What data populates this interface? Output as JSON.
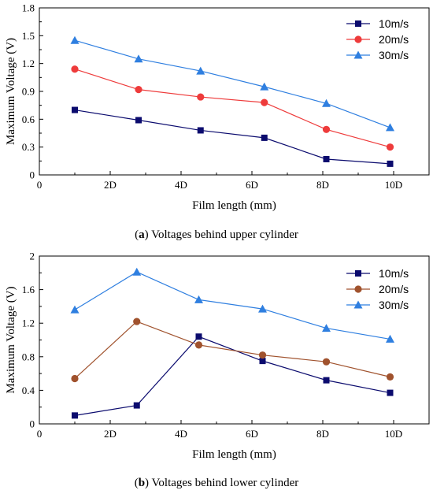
{
  "figure": {
    "captions": [
      {
        "prefix": "(",
        "letter": "a",
        "text": ") Voltages behind upper cylinder"
      },
      {
        "prefix": "(",
        "letter": "b",
        "text": ") Voltages behind lower cylinder"
      }
    ]
  },
  "chart_data": [
    {
      "type": "line",
      "title": "",
      "xlabel": "Film length (mm)",
      "ylabel": "Maximum Voltage (V)",
      "xlim": [
        0,
        11
      ],
      "ylim": [
        0,
        1.8
      ],
      "x_ticks": [
        0,
        2,
        4,
        6,
        8,
        10
      ],
      "x_tick_labels": [
        "0",
        "2D",
        "4D",
        "6D",
        "8D",
        "10D"
      ],
      "y_ticks": [
        0,
        0.3,
        0.6,
        0.9,
        1.2,
        1.5,
        1.8
      ],
      "y_tick_labels": [
        "0",
        "0.3",
        "0.6",
        "0.9",
        "1.2",
        "1.5",
        "1.8"
      ],
      "grid": false,
      "legend_position": "top-right",
      "x": [
        1.0,
        2.8,
        4.55,
        6.35,
        8.1,
        9.9
      ],
      "series": [
        {
          "name": "10m/s",
          "color": "#0b0b6e",
          "marker": "square",
          "values": [
            0.7,
            0.59,
            0.48,
            0.4,
            0.17,
            0.12
          ]
        },
        {
          "name": "20m/s",
          "color": "#ee3b3b",
          "marker": "circle",
          "values": [
            1.14,
            0.92,
            0.84,
            0.78,
            0.49,
            0.3
          ]
        },
        {
          "name": "30m/s",
          "color": "#2f7fe0",
          "marker": "triangle",
          "values": [
            1.45,
            1.25,
            1.12,
            0.95,
            0.77,
            0.51
          ]
        }
      ]
    },
    {
      "type": "line",
      "title": "",
      "xlabel": "Film length (mm)",
      "ylabel": "Maximum Voltage (V)",
      "xlim": [
        0,
        11
      ],
      "ylim": [
        0,
        2
      ],
      "x_ticks": [
        0,
        2,
        4,
        6,
        8,
        10
      ],
      "x_tick_labels": [
        "0",
        "2D",
        "4D",
        "6D",
        "8D",
        "10D"
      ],
      "y_ticks": [
        0,
        0.4,
        0.8,
        1.2,
        1.6,
        2.0
      ],
      "y_tick_labels": [
        "0",
        "0.4",
        "0.8",
        "1.2",
        "1.6",
        "2"
      ],
      "grid": false,
      "legend_position": "top-right",
      "x": [
        1.0,
        2.75,
        4.5,
        6.3,
        8.1,
        9.9
      ],
      "series": [
        {
          "name": "10m/s",
          "color": "#0b0b6e",
          "marker": "square",
          "values": [
            0.1,
            0.22,
            1.04,
            0.75,
            0.52,
            0.37
          ]
        },
        {
          "name": "20m/s",
          "color": "#a0522d",
          "marker": "circle",
          "values": [
            0.54,
            1.22,
            0.94,
            0.82,
            0.74,
            0.56
          ]
        },
        {
          "name": "30m/s",
          "color": "#2f7fe0",
          "marker": "triangle",
          "values": [
            1.36,
            1.81,
            1.48,
            1.37,
            1.14,
            1.01
          ]
        }
      ]
    }
  ]
}
